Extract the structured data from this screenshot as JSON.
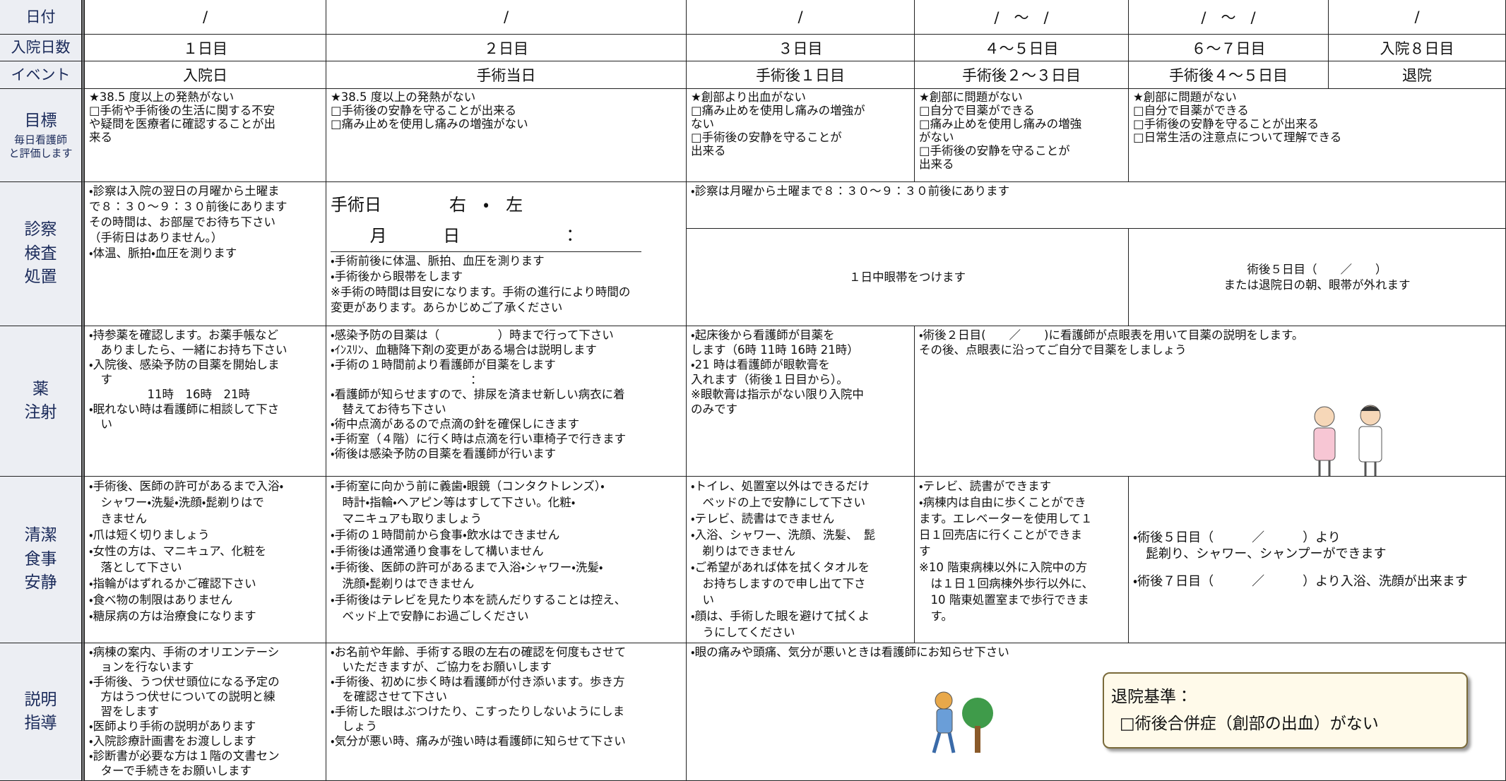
{
  "header_rows": [
    {
      "label": "日付",
      "cells": [
        "/",
        "/",
        "/",
        "/　～　/",
        "/　～　/",
        "/"
      ]
    },
    {
      "label": "入院日数",
      "cells": [
        "１日目",
        "２日目",
        "３日目",
        "４～５日目",
        "６～７日目",
        "入院８日目"
      ]
    },
    {
      "label": "イベント",
      "cells": [
        "入院日",
        "手術当日",
        "手術後１日目",
        "手術後２～３日目",
        "手術後４～５日目",
        "退院"
      ]
    }
  ],
  "rows": [
    {
      "label": [
        "目標",
        "毎日看護師",
        "と評価します"
      ],
      "cells": [
        {
          "lines": [
            "★38.5 度以上の発熱がない",
            "□手術や手術後の生活に関する不安",
            "や疑問を医療者に確認することが出",
            "来る"
          ]
        },
        {
          "lines": [
            "★38.5 度以上の発熱がない",
            "□手術後の安静を守ることが出来る",
            "□痛み止めを使用し痛みの増強がない"
          ]
        },
        {
          "lines": [
            "★創部より出血がない",
            "□痛み止めを使用し痛みの増強が",
            "ない",
            "□手術後の安静を守ることが",
            "出来る"
          ]
        },
        {
          "lines": [
            "★創部に問題がない",
            "□自分で目薬ができる",
            "□痛み止めを使用し痛みの増強",
            "がない",
            "□手術後の安静を守ることが",
            "出来る"
          ]
        },
        {
          "lines": [
            "★創部に問題がない",
            "□自分で目薬ができる",
            "□手術後の安静を守ることが出来る",
            "□日常生活の注意点について理解できる"
          ]
        }
      ]
    },
    {
      "label": [
        "診察",
        "検査",
        "処置"
      ],
      "cells": [
        {
          "lines": [
            "・診察は入院の翌日の月曜から土曜ま",
            "で８：３０～９：３０前後にあります",
            "その時間は、お部屋でお待ち下さい",
            "（手術日はありません。）",
            "・体温、脈拍・血圧を測ります"
          ]
        },
        {
          "heading": [
            "手術日　　　　右　・　左",
            "　　 月　　　 日　　　　　　："
          ],
          "lines": [
            "・手術前後に体温、脈拍、血圧を測ります",
            "・手術後から眼帯をします",
            "※手術の時間は目安になります。手術の進行により時間の",
            "変更があります。あらかじめご了承ください"
          ]
        },
        {
          "lines": [
            "・診察は月曜から土曜まで８：３０～９：３０前後にあります"
          ]
        },
        {
          "lines": [
            "１日中眼帯をつけます"
          ]
        },
        {
          "lines": [
            "術後５日目（　　／　　）",
            "または退院日の朝、眼帯が外れます"
          ]
        }
      ]
    },
    {
      "label": [
        "薬",
        "注射"
      ],
      "cells": [
        {
          "lines": [
            "・持参薬を確認します。お薬手帳など",
            "　ありましたら、一緒にお持ち下さい",
            "・入院後、感染予防の目薬を開始しま",
            "　す",
            "　　　　　11時　16時　21時",
            "・眠れない時は看護師に相談して下さ",
            "　い"
          ]
        },
        {
          "lines": [
            "・感染予防の目薬は（　　　　　）時まで行って下さい",
            "・ｲﾝｽﾘﾝ、血糖降下剤の変更がある場合は説明します",
            "・手術の１時間前より看護師が目薬をします",
            "　　　　　　　　　　　　：",
            "・看護師が知らせますので、排尿を済ませ新しい病衣に着",
            "　替えてお待ち下さい",
            "・術中点滴があるので点滴の針を確保しにきます",
            "・手術室（４階）に行く時は点滴を行い車椅子で行きます",
            "・術後は感染予防の目薬を看護師が行います"
          ]
        },
        {
          "lines": [
            "・起床後から看護師が目薬を",
            "します（6時 11時 16時 21時）",
            "・21 時は看護師が眼軟膏を",
            "入れます（術後１日目から）。",
            "※眼軟膏は指示がない限り入院中",
            "のみです"
          ]
        },
        {
          "lines": [
            "・術後２日目(　　／　　)に看護師が点眼表を用いて目薬の説明をします。",
            "その後、点眼表に沿ってご自分で目薬をしましょう"
          ]
        }
      ]
    },
    {
      "label": [
        "清潔",
        "食事",
        "安静"
      ],
      "cells": [
        {
          "lines": [
            "・手術後、医師の許可があるまで入浴・",
            "　シャワー・洗髪・洗顔・髭剃りはで",
            "　きません",
            "・爪は短く切りましょう",
            "・女性の方は、マニキュア、化粧を",
            "　落として下さい",
            "・指輪がはずれるかご確認下さい",
            "・食べ物の制限はありません",
            "・糖尿病の方は治療食になります"
          ]
        },
        {
          "lines": [
            "・手術室に向かう前に義歯・眼鏡（コンタクトレンズ）・",
            "　時計・指輪・ヘアピン等はすして下さい。化粧・",
            "　マニキュアも取りましょう",
            "・手術の１時間前から食事・飲水はできません",
            "・手術後は通常通り食事をして構いません",
            "・手術後、医師の許可があるまで入浴・シャワー・洗髪・",
            "　洗顔・髭剃りはできません",
            "・手術後はテレビを見たり本を読んだりすることは控え、",
            "　ベッド上で安静にお過ごしください"
          ]
        },
        {
          "lines": [
            "・トイレ、処置室以外はできるだけ",
            "　ベッドの上で安静にして下さい",
            "・テレビ、読書はできません",
            "・入浴、シャワー、洗顔、洗髪、　髭",
            "　剃りはできません",
            "・ご希望があれば体を拭くタオルを",
            "　お持ちしますので申し出て下さ",
            "　い",
            "・顔は、手術した眼を避けて拭くよ",
            "　うにしてください"
          ]
        },
        {
          "lines": [
            "・テレビ、読書ができます",
            "・病棟内は自由に歩くことができ",
            "ます。エレベーターを使用して１",
            "日１回売店に行くことができま",
            "す",
            "※10 階東病棟以外に入院中の方",
            "　は１日１回病棟外歩行以外に、",
            "　10 階東処置室まで歩行できま",
            "　す。"
          ]
        },
        {
          "lines": [
            "・術後５日目（　　　／　　　）より",
            "　髭剃り、シャワー、シャンプーができます",
            "・術後７日目（　　　／　　　）より入浴、洗顔が出来ます"
          ]
        }
      ]
    },
    {
      "label": [
        "説明",
        "指導"
      ],
      "cells": [
        {
          "lines": [
            "・病棟の案内、手術のオリエンテーシ",
            "　ョンを行ないます",
            "・手術後、うつ伏せ頭位になる予定の",
            "　方はうつ伏せについての説明と練",
            "　習をします",
            "・医師より手術の説明があります",
            "・入院診療計画書をお渡しします",
            "・診断書が必要な方は１階の文書セン",
            "　ターで手続きをお願いします"
          ]
        },
        {
          "lines": [
            "・お名前や年齢、手術する眼の左右の確認を何度もさせて",
            "　いただきますが、ご協力をお願いします",
            "・手術後、初めに歩く時は看護師が付き添います。歩き方",
            "　を確認させて下さい",
            "・手術した眼はぶつけたり、こすったりしないようにしま",
            "　しょう",
            "・気分が悪い時、痛みが強い時は看護師に知らせて下さい"
          ]
        },
        {
          "lines": [
            "・眼の痛みや頭痛、気分が悪いときは看護師にお知らせ下さい"
          ]
        }
      ]
    }
  ],
  "note": {
    "title": "退院基準：",
    "text": "□術後合併症（創部の出血）がない"
  }
}
